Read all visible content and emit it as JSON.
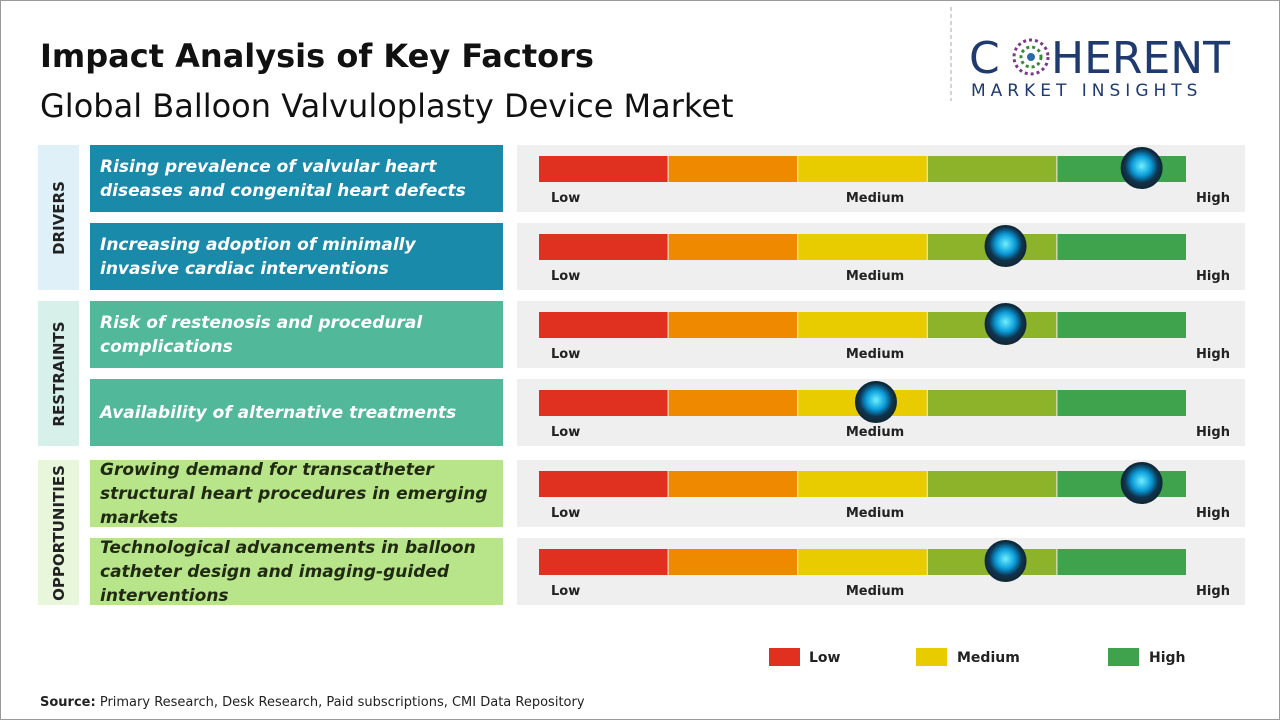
{
  "title": "Impact Analysis of Key Factors",
  "subtitle": "Global Balloon Valvuloplasty Device Market",
  "logo": {
    "name_start": "C",
    "name_end": "HERENT",
    "tagline": "MARKET INSIGHTS"
  },
  "scale_labels": [
    "Low",
    "Medium",
    "High"
  ],
  "impact_range": [
    0,
    5
  ],
  "segment_colors": [
    "#e03020",
    "#ef8a00",
    "#e8cc00",
    "#8db32a",
    "#3fa34d"
  ],
  "groups": [
    {
      "name": "DRIVERS",
      "color": "#1a8aaa",
      "background": "#dff0f8",
      "text_color": "#ffffff",
      "factors": [
        {
          "text": "Rising prevalence of valvular heart diseases and congenital heart defects",
          "impact": 4.65
        },
        {
          "text": "Increasing adoption of minimally invasive cardiac interventions",
          "impact": 3.6
        }
      ]
    },
    {
      "name": "RESTRAINTS",
      "color": "#52b89a",
      "background": "#d8f0ea",
      "text_color": "#ffffff",
      "factors": [
        {
          "text": "Risk of restenosis and procedural complications",
          "impact": 3.6
        },
        {
          "text": "Availability of alternative treatments",
          "impact": 2.6
        }
      ]
    },
    {
      "name": "OPPORTUNITIES",
      "color": "#b8e48a",
      "background": "#e8f6dc",
      "text_color": "#1f2a10",
      "factors": [
        {
          "text": "Growing demand for transcatheter structural heart procedures in emerging markets",
          "impact": 4.65
        },
        {
          "text": "Technological advancements in balloon catheter design and imaging-guided interventions",
          "impact": 3.6
        }
      ]
    }
  ],
  "legend": [
    {
      "label": "Low",
      "color": "#e03020"
    },
    {
      "label": "Medium",
      "color": "#e8cc00"
    },
    {
      "label": "High",
      "color": "#3fa34d"
    }
  ],
  "source": {
    "label": "Source:",
    "text": "Primary Research, Desk Research, Paid subscriptions, CMI Data Repository"
  }
}
